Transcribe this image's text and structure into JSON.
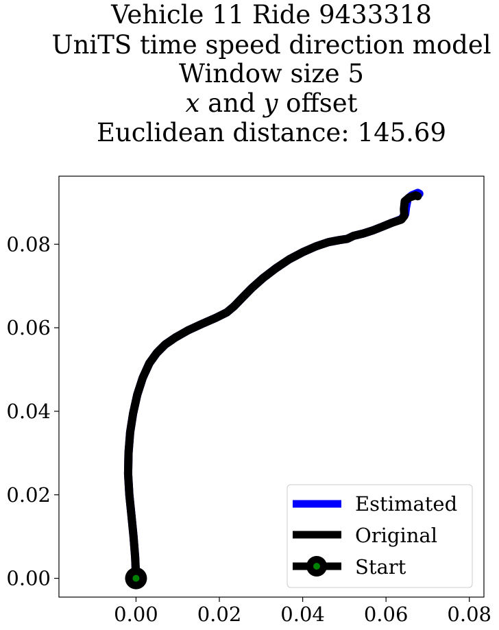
{
  "chart_data": {
    "type": "line",
    "title_lines": [
      "Vehicle 11 Ride 9433318",
      "UniTS time speed direction model",
      "Window size 5",
      "x and y offset",
      "Euclidean distance: 145.69"
    ],
    "xlabel": "",
    "ylabel": "",
    "xlim": [
      -0.0185,
      0.0835
    ],
    "ylim": [
      -0.0045,
      0.0963
    ],
    "x_ticks": [
      0.0,
      0.02,
      0.04,
      0.06,
      0.08
    ],
    "x_tick_labels": [
      "0.00",
      "0.02",
      "0.04",
      "0.06",
      "0.08"
    ],
    "y_ticks": [
      0.0,
      0.02,
      0.04,
      0.06,
      0.08
    ],
    "y_tick_labels": [
      "0.00",
      "0.02",
      "0.04",
      "0.06",
      "0.08"
    ],
    "grid": false,
    "legend_position": "lower-right",
    "series": [
      {
        "name": "Estimated",
        "color": "#0000ff",
        "x": [
          0.0,
          -0.0002,
          -0.0006,
          -0.0011,
          -0.0016,
          -0.0019,
          -0.0018,
          -0.0014,
          -0.0007,
          0.0003,
          0.0016,
          0.0032,
          0.005,
          0.007,
          0.0095,
          0.0125,
          0.0158,
          0.0192,
          0.0218,
          0.0236,
          0.0255,
          0.0278,
          0.0305,
          0.0335,
          0.0368,
          0.04,
          0.0432,
          0.0462,
          0.0488,
          0.0507,
          0.0522,
          0.0546,
          0.0568,
          0.0591,
          0.0613,
          0.0637,
          0.0646,
          0.0648,
          0.0652,
          0.0662,
          0.0676,
          0.068
        ],
        "y": [
          0.0,
          0.005,
          0.01,
          0.015,
          0.02,
          0.025,
          0.03,
          0.035,
          0.0395,
          0.044,
          0.048,
          0.0515,
          0.054,
          0.056,
          0.0577,
          0.0594,
          0.0609,
          0.0624,
          0.0637,
          0.0652,
          0.0672,
          0.0695,
          0.0719,
          0.0742,
          0.0764,
          0.0781,
          0.0795,
          0.0805,
          0.081,
          0.0813,
          0.082,
          0.0826,
          0.0833,
          0.0842,
          0.0851,
          0.086,
          0.0872,
          0.0888,
          0.0909,
          0.0917,
          0.0923,
          0.0921
        ]
      },
      {
        "name": "Original",
        "color": "#000000",
        "x": [
          0.0,
          -0.0002,
          -0.0006,
          -0.0011,
          -0.0016,
          -0.0019,
          -0.0018,
          -0.0014,
          -0.0007,
          0.0003,
          0.0016,
          0.0032,
          0.005,
          0.007,
          0.0095,
          0.0125,
          0.0158,
          0.0192,
          0.0218,
          0.0236,
          0.0255,
          0.0278,
          0.0305,
          0.0335,
          0.0368,
          0.04,
          0.0432,
          0.0462,
          0.0488,
          0.0507,
          0.0522,
          0.0546,
          0.0568,
          0.0591,
          0.0613,
          0.0637,
          0.0644,
          0.0643,
          0.0645,
          0.0656,
          0.0671,
          0.0676
        ],
        "y": [
          0.0,
          0.005,
          0.01,
          0.015,
          0.02,
          0.025,
          0.03,
          0.035,
          0.0395,
          0.044,
          0.048,
          0.0515,
          0.054,
          0.056,
          0.0577,
          0.0594,
          0.0609,
          0.0624,
          0.0637,
          0.0652,
          0.0672,
          0.0695,
          0.0719,
          0.0742,
          0.0764,
          0.0781,
          0.0795,
          0.0805,
          0.081,
          0.0813,
          0.082,
          0.0826,
          0.0833,
          0.0842,
          0.0851,
          0.0859,
          0.0868,
          0.0884,
          0.0903,
          0.0912,
          0.0917,
          0.0915
        ]
      }
    ],
    "start_marker": {
      "name": "Start",
      "x": 0.0,
      "y": 0.0,
      "outer_color": "#000000",
      "inner_color": "#008000"
    },
    "legend": [
      {
        "label": "Estimated",
        "color": "#0000ff",
        "marker": false
      },
      {
        "label": "Original",
        "color": "#000000",
        "marker": false
      },
      {
        "label": "Start",
        "color": "#000000",
        "marker": true,
        "marker_face": "#008000"
      }
    ]
  }
}
